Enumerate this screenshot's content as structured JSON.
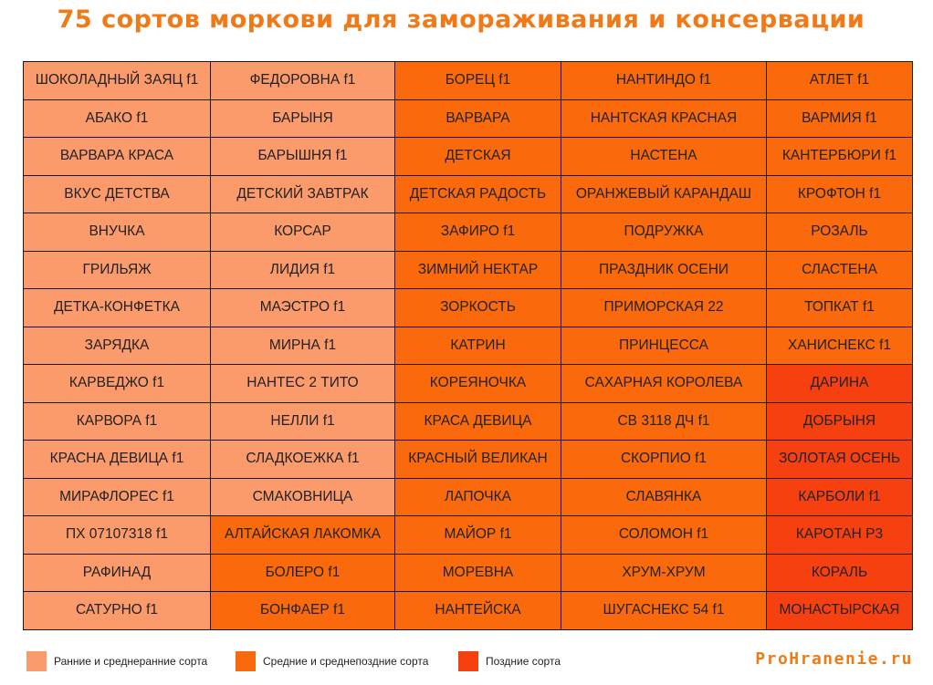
{
  "title": "75 сортов моркови для замораживания и консервации",
  "colors": {
    "early": "#fb9a6a",
    "mid": "#fa6a0c",
    "late": "#f7400f",
    "title": "#f07a18"
  },
  "rows": [
    [
      {
        "t": "ШОКОЛАДНЫЙ ЗАЯЦ f1",
        "c": "early"
      },
      {
        "t": "ФЕДОРОВНА f1",
        "c": "early"
      },
      {
        "t": "БОРЕЦ f1",
        "c": "mid"
      },
      {
        "t": "НАНТИНДО f1",
        "c": "mid"
      },
      {
        "t": "АТЛЕТ f1",
        "c": "mid"
      }
    ],
    [
      {
        "t": "АБАКО f1",
        "c": "early"
      },
      {
        "t": "БАРЫНЯ",
        "c": "early"
      },
      {
        "t": "ВАРВАРА",
        "c": "mid"
      },
      {
        "t": "НАНТСКАЯ КРАСНАЯ",
        "c": "mid"
      },
      {
        "t": "ВАРМИЯ f1",
        "c": "mid"
      }
    ],
    [
      {
        "t": "ВАРВАРА КРАСА",
        "c": "early"
      },
      {
        "t": "БАРЫШНЯ f1",
        "c": "early"
      },
      {
        "t": "ДЕТСКАЯ",
        "c": "mid"
      },
      {
        "t": "НАСТЕНА",
        "c": "mid"
      },
      {
        "t": "КАНТЕРБЮРИ f1",
        "c": "mid"
      }
    ],
    [
      {
        "t": "ВКУС ДЕТСТВА",
        "c": "early"
      },
      {
        "t": "ДЕТСКИЙ ЗАВТРАК",
        "c": "early"
      },
      {
        "t": "ДЕТСКАЯ РАДОСТЬ",
        "c": "mid"
      },
      {
        "t": "ОРАНЖЕВЫЙ КАРАНДАШ",
        "c": "mid"
      },
      {
        "t": "КРОФТОН f1",
        "c": "mid"
      }
    ],
    [
      {
        "t": "ВНУЧКА",
        "c": "early"
      },
      {
        "t": "КОРСАР",
        "c": "early"
      },
      {
        "t": "ЗАФИРО f1",
        "c": "mid"
      },
      {
        "t": "ПОДРУЖКА",
        "c": "mid"
      },
      {
        "t": "РОЗАЛЬ",
        "c": "mid"
      }
    ],
    [
      {
        "t": "ГРИЛЬЯЖ",
        "c": "early"
      },
      {
        "t": "ЛИДИЯ f1",
        "c": "early"
      },
      {
        "t": "ЗИМНИЙ НЕКТАР",
        "c": "mid"
      },
      {
        "t": "ПРАЗДНИК ОСЕНИ",
        "c": "mid"
      },
      {
        "t": "СЛАСТЕНА",
        "c": "mid"
      }
    ],
    [
      {
        "t": "ДЕТКА-КОНФЕТКА",
        "c": "early"
      },
      {
        "t": "МАЭСТРО f1",
        "c": "early"
      },
      {
        "t": "ЗОРКОСТЬ",
        "c": "mid"
      },
      {
        "t": "ПРИМОРСКАЯ 22",
        "c": "mid"
      },
      {
        "t": "ТОПКАТ f1",
        "c": "mid"
      }
    ],
    [
      {
        "t": "ЗАРЯДКА",
        "c": "early"
      },
      {
        "t": "МИРНА f1",
        "c": "early"
      },
      {
        "t": "КАТРИН",
        "c": "mid"
      },
      {
        "t": "ПРИНЦЕССА",
        "c": "mid"
      },
      {
        "t": "ХАНИСНЕКС f1",
        "c": "mid"
      }
    ],
    [
      {
        "t": "КАРВЕДЖО f1",
        "c": "early"
      },
      {
        "t": "НАНТЕС 2 ТИТО",
        "c": "early"
      },
      {
        "t": "КОРЕЯНОЧКА",
        "c": "mid"
      },
      {
        "t": "САХАРНАЯ КОРОЛЕВА",
        "c": "mid"
      },
      {
        "t": "ДАРИНА",
        "c": "late"
      }
    ],
    [
      {
        "t": "КАРВОРА f1",
        "c": "early"
      },
      {
        "t": "НЕЛЛИ f1",
        "c": "early"
      },
      {
        "t": "КРАСА ДЕВИЦА",
        "c": "mid"
      },
      {
        "t": "СВ 3118 ДЧ f1",
        "c": "mid"
      },
      {
        "t": "ДОБРЫНЯ",
        "c": "late"
      }
    ],
    [
      {
        "t": "КРАСНА ДЕВИЦА f1",
        "c": "early"
      },
      {
        "t": "СЛАДКОЕЖКА f1",
        "c": "early"
      },
      {
        "t": "КРАСНЫЙ ВЕЛИКАН",
        "c": "mid"
      },
      {
        "t": "СКОРПИО f1",
        "c": "mid"
      },
      {
        "t": "ЗОЛОТАЯ ОСЕНЬ",
        "c": "late"
      }
    ],
    [
      {
        "t": "МИРАФЛОРЕС f1",
        "c": "early"
      },
      {
        "t": "СМАКОВНИЦА",
        "c": "early"
      },
      {
        "t": "ЛАПОЧКА",
        "c": "mid"
      },
      {
        "t": "СЛАВЯНКА",
        "c": "mid"
      },
      {
        "t": "КАРБОЛИ f1",
        "c": "late"
      }
    ],
    [
      {
        "t": "ПХ 07107318 f1",
        "c": "early"
      },
      {
        "t": "АЛТАЙСКАЯ ЛАКОМКА",
        "c": "mid"
      },
      {
        "t": "МАЙОР f1",
        "c": "mid"
      },
      {
        "t": "СОЛОМОН f1",
        "c": "mid"
      },
      {
        "t": "КАРОТАН Р3",
        "c": "late"
      }
    ],
    [
      {
        "t": "РАФИНАД",
        "c": "early"
      },
      {
        "t": "БОЛЕРО f1",
        "c": "mid"
      },
      {
        "t": "МОРЕВНА",
        "c": "mid"
      },
      {
        "t": "ХРУМ-ХРУМ",
        "c": "mid"
      },
      {
        "t": "КОРАЛЬ",
        "c": "late"
      }
    ],
    [
      {
        "t": "САТУРНО f1",
        "c": "early"
      },
      {
        "t": "БОНФАЕР f1",
        "c": "mid"
      },
      {
        "t": "НАНТЕЙСКА",
        "c": "mid"
      },
      {
        "t": "ШУГАСНЕКС 54 f1",
        "c": "mid"
      },
      {
        "t": "МОНАСТЫРСКАЯ",
        "c": "late"
      }
    ]
  ],
  "legend": [
    {
      "label": "Ранние и среднеранние сорта",
      "c": "early"
    },
    {
      "label": "Средние и среднепоздние сорта",
      "c": "mid"
    },
    {
      "label": "Поздние сорта",
      "c": "late"
    }
  ],
  "site": "ProHranenie.ru"
}
